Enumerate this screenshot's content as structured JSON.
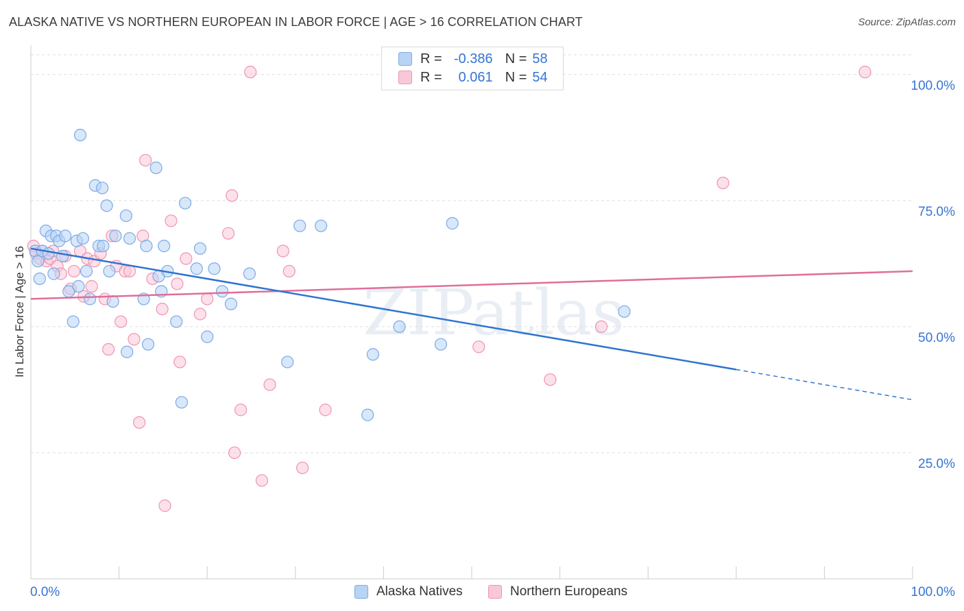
{
  "title": "ALASKA NATIVE VS NORTHERN EUROPEAN IN LABOR FORCE | AGE > 16 CORRELATION CHART",
  "source": "Source: ZipAtlas.com",
  "watermark": "ZIPatlas",
  "legend": {
    "r_label": "R =",
    "n_label": "N =",
    "rows": [
      {
        "r": "-0.386",
        "n": "58"
      },
      {
        "r": "0.061",
        "n": "54"
      }
    ]
  },
  "bottom_legend": [
    "Alaska Natives",
    "Northern Europeans"
  ],
  "colors": {
    "blue_fill": "#b8d4f4",
    "blue_stroke": "#7aaae6",
    "blue_line": "#2f74d0",
    "pink_fill": "#f9c8d8",
    "pink_stroke": "#ee93b2",
    "pink_line": "#e06d9a",
    "grid": "#dddddd",
    "axis_text": "#3574d4"
  },
  "chart_data": {
    "type": "scatter",
    "xlabel": "",
    "ylabel": "In Labor Force | Age > 16",
    "xlim": [
      0,
      100
    ],
    "ylim": [
      0,
      105
    ],
    "x_tick_labels": [
      "0.0%",
      "100.0%"
    ],
    "y_ticks": [
      25,
      50,
      75,
      100
    ],
    "y_tick_labels": [
      "25.0%",
      "50.0%",
      "75.0%",
      "100.0%"
    ],
    "grid": true,
    "series": [
      {
        "name": "Alaska Natives",
        "r": -0.386,
        "n": 58,
        "trend": {
          "x0": 0,
          "y0": 65.5,
          "x1": 80,
          "y1": 41.5,
          "dashed_to_x": 100,
          "dashed_to_y": 35.5
        },
        "points": [
          [
            0.5,
            65.0
          ],
          [
            0.8,
            63.0
          ],
          [
            1.0,
            59.5
          ],
          [
            1.3,
            65.0
          ],
          [
            1.7,
            69.0
          ],
          [
            2.0,
            64.5
          ],
          [
            2.3,
            68.0
          ],
          [
            2.6,
            60.5
          ],
          [
            2.9,
            68.0
          ],
          [
            3.2,
            67.0
          ],
          [
            3.6,
            64.0
          ],
          [
            3.9,
            68.0
          ],
          [
            4.3,
            57.0
          ],
          [
            4.8,
            51.0
          ],
          [
            5.2,
            67.0
          ],
          [
            5.4,
            58.0
          ],
          [
            5.6,
            88.0
          ],
          [
            5.9,
            67.5
          ],
          [
            6.3,
            61.0
          ],
          [
            6.7,
            55.5
          ],
          [
            7.3,
            78.0
          ],
          [
            7.7,
            66.0
          ],
          [
            8.1,
            77.5
          ],
          [
            8.2,
            66.0
          ],
          [
            8.6,
            74.0
          ],
          [
            8.9,
            61.0
          ],
          [
            9.3,
            55.0
          ],
          [
            9.6,
            68.0
          ],
          [
            10.8,
            72.0
          ],
          [
            10.9,
            45.0
          ],
          [
            11.2,
            67.5
          ],
          [
            12.8,
            55.5
          ],
          [
            13.1,
            66.0
          ],
          [
            13.3,
            46.5
          ],
          [
            14.2,
            81.5
          ],
          [
            14.5,
            60.0
          ],
          [
            14.8,
            57.0
          ],
          [
            15.1,
            66.0
          ],
          [
            15.5,
            61.0
          ],
          [
            16.5,
            51.0
          ],
          [
            17.1,
            35.0
          ],
          [
            17.5,
            74.5
          ],
          [
            18.8,
            61.5
          ],
          [
            19.2,
            65.5
          ],
          [
            20.0,
            48.0
          ],
          [
            20.8,
            61.5
          ],
          [
            21.7,
            57.0
          ],
          [
            22.7,
            54.5
          ],
          [
            24.8,
            60.5
          ],
          [
            29.1,
            43.0
          ],
          [
            30.5,
            70.0
          ],
          [
            32.9,
            70.0
          ],
          [
            38.2,
            32.5
          ],
          [
            38.8,
            44.5
          ],
          [
            41.8,
            50.0
          ],
          [
            46.5,
            46.5
          ],
          [
            47.8,
            70.5
          ],
          [
            67.3,
            53.0
          ]
        ]
      },
      {
        "name": "Northern Europeans",
        "r": 0.061,
        "n": 54,
        "trend": {
          "x0": 0,
          "y0": 55.5,
          "x1": 100,
          "y1": 61.0
        },
        "points": [
          [
            0.3,
            66.0
          ],
          [
            0.6,
            64.5
          ],
          [
            1.0,
            63.5
          ],
          [
            1.3,
            65.0
          ],
          [
            1.8,
            63.0
          ],
          [
            2.2,
            63.5
          ],
          [
            2.5,
            65.0
          ],
          [
            3.0,
            62.0
          ],
          [
            3.4,
            60.5
          ],
          [
            3.9,
            64.0
          ],
          [
            4.5,
            57.5
          ],
          [
            4.9,
            61.0
          ],
          [
            5.6,
            65.0
          ],
          [
            6.0,
            56.0
          ],
          [
            6.4,
            63.5
          ],
          [
            6.9,
            58.0
          ],
          [
            7.2,
            63.0
          ],
          [
            7.9,
            64.5
          ],
          [
            8.4,
            55.5
          ],
          [
            8.8,
            45.5
          ],
          [
            9.2,
            68.0
          ],
          [
            9.7,
            62.0
          ],
          [
            10.2,
            51.0
          ],
          [
            10.7,
            61.0
          ],
          [
            11.2,
            61.0
          ],
          [
            11.7,
            47.5
          ],
          [
            12.3,
            31.0
          ],
          [
            12.7,
            68.0
          ],
          [
            13.0,
            83.0
          ],
          [
            13.8,
            59.5
          ],
          [
            14.9,
            53.5
          ],
          [
            15.2,
            14.5
          ],
          [
            15.9,
            71.0
          ],
          [
            16.6,
            58.5
          ],
          [
            16.9,
            43.0
          ],
          [
            17.6,
            63.5
          ],
          [
            19.2,
            52.5
          ],
          [
            20.0,
            55.5
          ],
          [
            22.4,
            68.5
          ],
          [
            22.8,
            76.0
          ],
          [
            23.1,
            25.0
          ],
          [
            23.8,
            33.5
          ],
          [
            24.9,
            100.5
          ],
          [
            26.2,
            19.5
          ],
          [
            27.1,
            38.5
          ],
          [
            28.6,
            65.0
          ],
          [
            29.3,
            61.0
          ],
          [
            30.8,
            22.0
          ],
          [
            33.4,
            33.5
          ],
          [
            50.8,
            46.0
          ],
          [
            58.9,
            39.5
          ],
          [
            64.7,
            50.0
          ],
          [
            78.5,
            78.5
          ],
          [
            94.6,
            100.5
          ]
        ]
      }
    ]
  }
}
